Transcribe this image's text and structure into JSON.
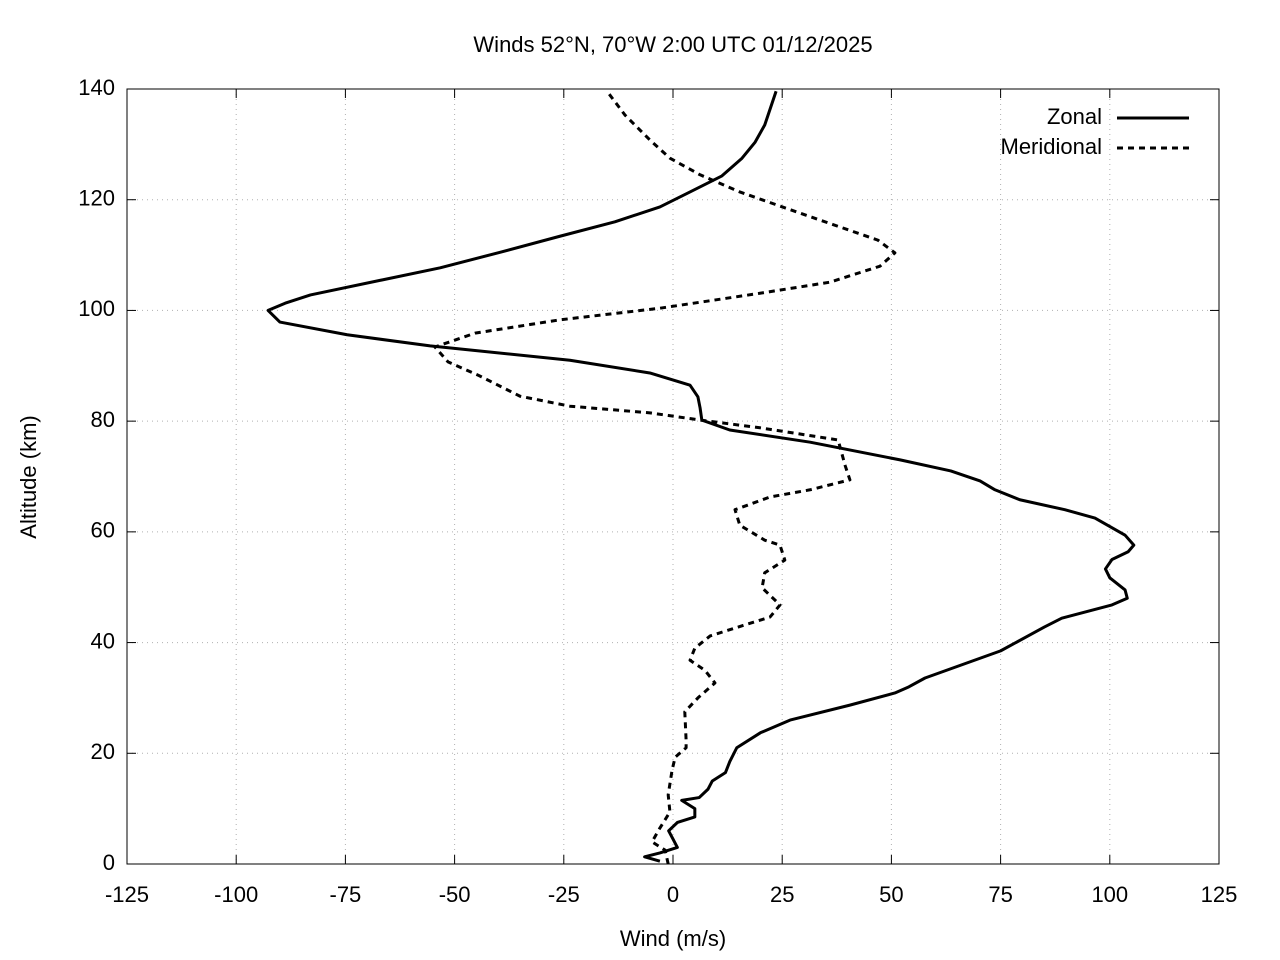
{
  "chart_data": {
    "type": "line",
    "title": "Winds 52°N, 70°W 2:00 UTC 01/12/2025",
    "x_label": "Wind (m/s)",
    "y_label": "Altitude (km)",
    "xlim": [
      -125,
      125
    ],
    "xticks": [
      -125,
      -100,
      -75,
      -50,
      -25,
      0,
      25,
      50,
      75,
      100,
      125
    ],
    "ylim": [
      0,
      140
    ],
    "yticks": [
      0,
      20,
      40,
      60,
      80,
      100,
      120,
      140
    ],
    "grid": true,
    "legend": "top-right",
    "series": [
      {
        "name": "Zonal",
        "color": "#000000",
        "line_style": "solid",
        "x": [
          -3,
          -6.5,
          -3,
          1,
          0,
          -1,
          1,
          5,
          5,
          2,
          6,
          8,
          9,
          12,
          13,
          14.6,
          20,
          26.8,
          40.5,
          50.8,
          54,
          57.7,
          75,
          85,
          89,
          100.5,
          104,
          103.5,
          100,
          99,
          100.5,
          104.2,
          105.5,
          103.5,
          96.6,
          89.7,
          79.4,
          73.7,
          70.3,
          63.6,
          52,
          31.4,
          13,
          6.6,
          6.2,
          5.7,
          3.9,
          -5.3,
          -23.6,
          -55.6,
          -74.6,
          -90,
          -92.7,
          -88.8,
          -83,
          -53.3,
          -39.6,
          -25.9,
          -13.3,
          -3,
          3.9,
          11.2,
          15.8,
          18.8,
          21,
          23.6
        ],
        "values": [
          0.5,
          1.3,
          2,
          3,
          4.5,
          6,
          7.5,
          8.5,
          10,
          11.5,
          12,
          13.5,
          15,
          16.5,
          18.5,
          21,
          23.7,
          26,
          28.7,
          30.9,
          32,
          33.6,
          38.5,
          42.8,
          44.4,
          46.8,
          48,
          49.5,
          51.7,
          53.3,
          55,
          56.4,
          57.6,
          59.4,
          62.5,
          64,
          65.8,
          67.6,
          69.2,
          71,
          73,
          76.2,
          78.4,
          80.2,
          82.4,
          84.4,
          86.5,
          88.7,
          91,
          93.6,
          95.6,
          97.9,
          100,
          101.3,
          102.8,
          107.7,
          110.5,
          113.4,
          116,
          118.7,
          121.4,
          124.3,
          127.5,
          130.4,
          133.5,
          139.6
        ]
      },
      {
        "name": "Meridional",
        "color": "#000000",
        "line_style": "dashed",
        "x": [
          -1.1,
          -1.8,
          -4.8,
          -3,
          -0.7,
          -1.1,
          -0.2,
          0.5,
          3,
          3,
          2.7,
          5.7,
          9.6,
          7.3,
          3.9,
          5,
          8.5,
          16.5,
          22.2,
          24.5,
          20.4,
          21,
          25.6,
          24.5,
          21,
          15.3,
          14.2,
          22.2,
          31.4,
          40.5,
          39.4,
          37.8,
          19.9,
          6.2,
          -5.3,
          -23.6,
          -35,
          -44.6,
          -51.5,
          -54.5,
          -45.3,
          -25.9,
          -3,
          19.9,
          35.9,
          47.4,
          50.8,
          46.9,
          29,
          15.3,
          6.2,
          -0.7,
          -5.3,
          -11,
          -15.1
        ],
        "values": [
          0,
          2.5,
          4,
          6.5,
          9.4,
          12.5,
          17,
          19.3,
          21,
          22.4,
          27.5,
          30,
          32.7,
          35,
          36.8,
          39,
          41.2,
          43.2,
          44.6,
          46.8,
          49.9,
          52.6,
          54.9,
          57.6,
          58.5,
          61.2,
          64,
          66.3,
          67.6,
          69.4,
          72,
          76.6,
          78.8,
          80.2,
          81.5,
          82.7,
          84.5,
          88.3,
          90.7,
          93.4,
          95.9,
          98.3,
          100.4,
          103.1,
          105.1,
          108,
          110.4,
          112.7,
          117.6,
          121.4,
          124.5,
          127.5,
          130.8,
          135.3,
          139.6
        ]
      }
    ]
  }
}
